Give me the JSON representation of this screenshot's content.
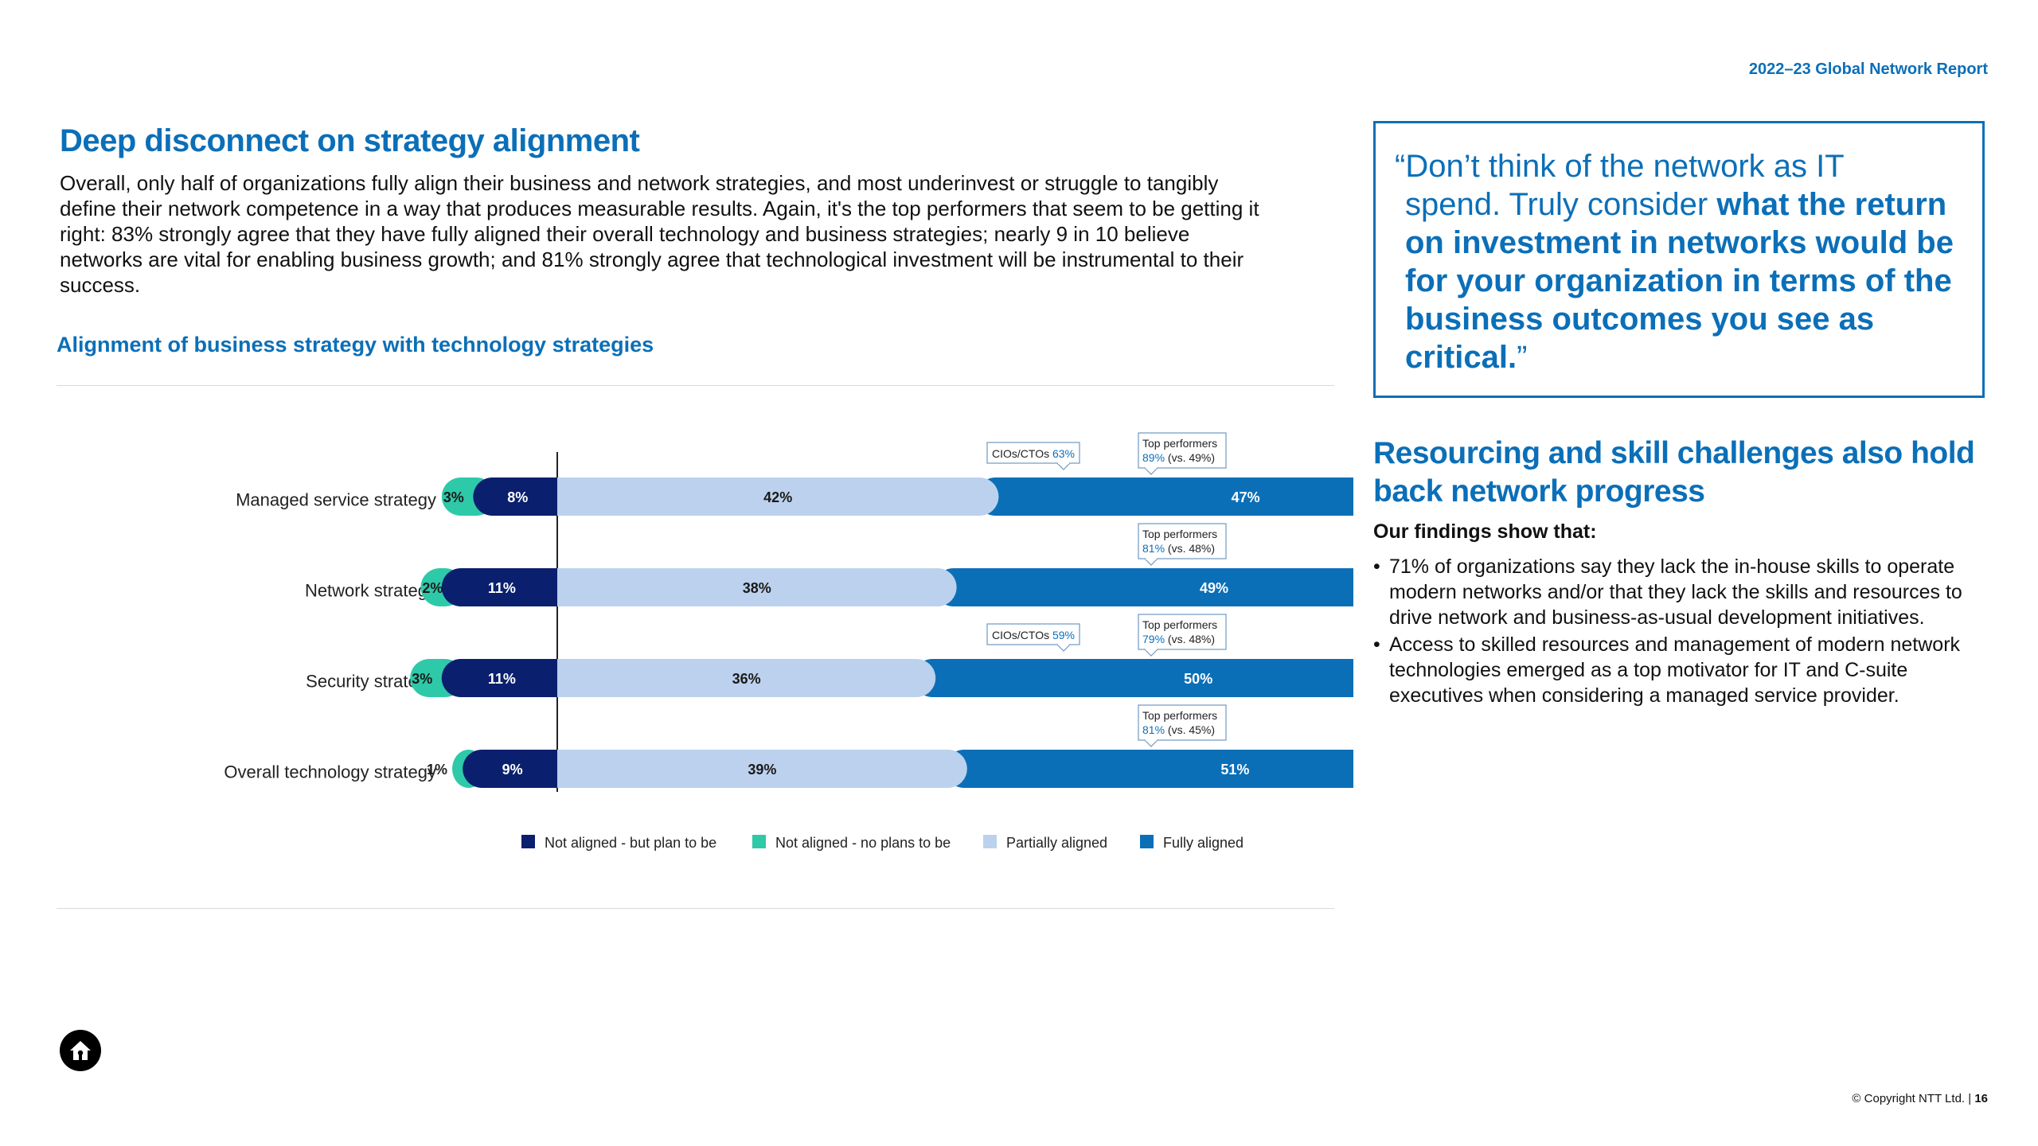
{
  "header": {
    "report_label": "2022–23 Global Network Report"
  },
  "main": {
    "title": "Deep disconnect on strategy alignment",
    "intro": "Overall, only half of organizations fully align their business and network strategies, and most underinvest or struggle to tangibly define their network competence in a way that produces measurable results. Again, it's the top performers that seem to be getting it right: 83% strongly agree that they have fully aligned their overall technology and business strategies; nearly 9 in 10 believe networks are vital for enabling business growth; and 81% strongly agree that technological investment will be instrumental to their success.",
    "chart_title": "Alignment of business strategy with technology strategies"
  },
  "chart_data": {
    "type": "bar",
    "stacked": true,
    "orientation": "horizontal",
    "categories": [
      "Managed service strategy",
      "Network strategy",
      "Security strategy",
      "Overall technology strategy"
    ],
    "series": [
      {
        "name": "Not aligned - no plans to be",
        "values": [
          3,
          2,
          3,
          1
        ],
        "labels": [
          "3%",
          "2%",
          "3%",
          "1%"
        ],
        "color": "#2ec9a9"
      },
      {
        "name": "Not aligned - but plan to be",
        "values": [
          8,
          11,
          11,
          9
        ],
        "labels": [
          "8%",
          "11%",
          "11%",
          "9%"
        ],
        "color": "#0a1f6e"
      },
      {
        "name": "Partially aligned",
        "values": [
          42,
          38,
          36,
          39
        ],
        "labels": [
          "42%",
          "38%",
          "36%",
          "39%"
        ],
        "color": "#bcd1ed"
      },
      {
        "name": "Fully aligned",
        "values": [
          47,
          49,
          50,
          51
        ],
        "labels": [
          "47%",
          "49%",
          "50%",
          "51%"
        ],
        "color": "#0b6fb8"
      }
    ],
    "legend": [
      {
        "name": "Not aligned - but plan to be",
        "color": "#0a1f6e"
      },
      {
        "name": "Not aligned - no plans to be",
        "color": "#2ec9a9"
      },
      {
        "name": "Partially aligned",
        "color": "#bcd1ed"
      },
      {
        "name": "Fully aligned",
        "color": "#0b6fb8"
      }
    ],
    "legend_placement": "bottom",
    "callouts": {
      "top_performers": [
        {
          "label": "Top performers",
          "pct": "89%",
          "rest": " (vs. 49%)"
        },
        {
          "label": "Top performers",
          "pct": "81%",
          "rest": " (vs. 48%)"
        },
        {
          "label": "Top performers",
          "pct": "79%",
          "rest": " (vs. 48%)"
        },
        {
          "label": "Top performers",
          "pct": "81%",
          "rest": " (vs. 45%)"
        }
      ],
      "cio": [
        {
          "label": "CIOs/CTOs ",
          "pct": "63%"
        },
        null,
        {
          "label": "CIOs/CTOs ",
          "pct": "59%"
        },
        null
      ]
    }
  },
  "quote": {
    "open": "“Don’t think of the network as IT",
    "line2": "spend. Truly consider ",
    "strong": "what the return on investment in networks would be for your organization in terms of the business outcomes you see as critical.",
    "close": "”"
  },
  "side": {
    "title": "Resourcing and skill challenges also hold back network progress",
    "findings_title": "Our findings show that:",
    "bullet": "•",
    "findings": [
      "71% of organizations say they lack the in-house skills to operate modern networks and/or that they lack the skills and resources to drive network and business-as-usual development initiatives.",
      "Access to skilled resources and management of modern network technologies emerged as a top motivator for IT and C-suite executives when considering a managed service provider."
    ]
  },
  "footer": {
    "copyright": "© Copyright NTT Ltd. | ",
    "page_number": "16"
  }
}
